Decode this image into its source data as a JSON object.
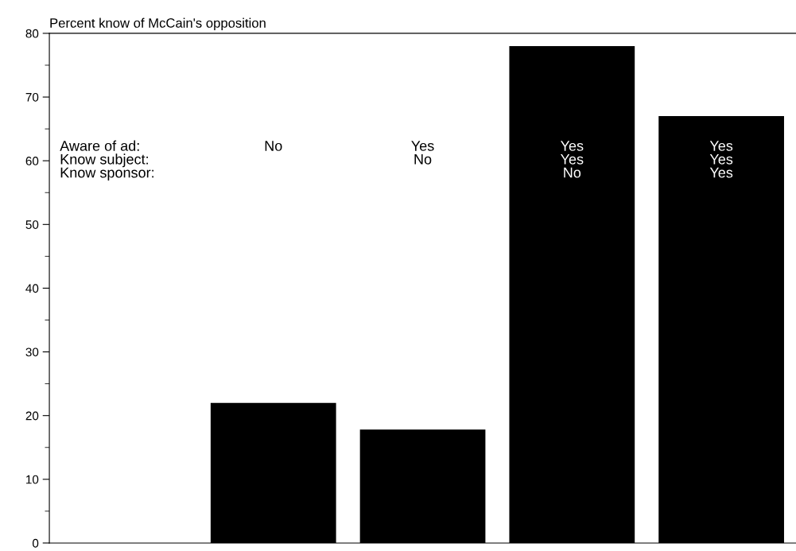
{
  "chart_data": {
    "type": "bar",
    "title": "Percent know of McCain's opposition",
    "categories": [
      null,
      "No",
      "Yes\nNo",
      "Yes\nYes\nNo",
      "Yes\nYes\nYes"
    ],
    "values": [
      null,
      22,
      17.8,
      78,
      67
    ],
    "color": "#000000",
    "ylim": [
      0,
      80
    ],
    "yticks": [
      0,
      10,
      20,
      30,
      40,
      50,
      60,
      70,
      80
    ],
    "annotations": [
      "Aware of ad:\nKnow subject:\nKnow sponsor:"
    ],
    "grid": false,
    "legend": false
  }
}
